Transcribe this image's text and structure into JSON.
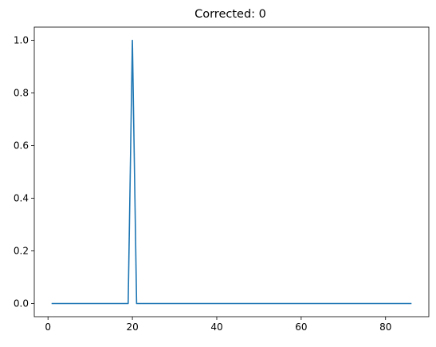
{
  "chart_data": {
    "type": "line",
    "title": "Corrected: 0",
    "xlabel": "",
    "ylabel": "",
    "xlim": [
      -3.25,
      90.25
    ],
    "ylim": [
      -0.05,
      1.05
    ],
    "xticks": [
      0,
      20,
      40,
      60,
      80
    ],
    "xtick_labels": [
      "0",
      "20",
      "40",
      "60",
      "80"
    ],
    "yticks": [
      0.0,
      0.2,
      0.4,
      0.6,
      0.8,
      1.0
    ],
    "ytick_labels": [
      "0.0",
      "0.2",
      "0.4",
      "0.6",
      "0.8",
      "1.0"
    ],
    "grid": false,
    "series": [
      {
        "color": "#1f77b4",
        "x": [
          1,
          19,
          20,
          21,
          86
        ],
        "y": [
          0,
          0,
          1,
          0,
          0
        ]
      }
    ]
  }
}
